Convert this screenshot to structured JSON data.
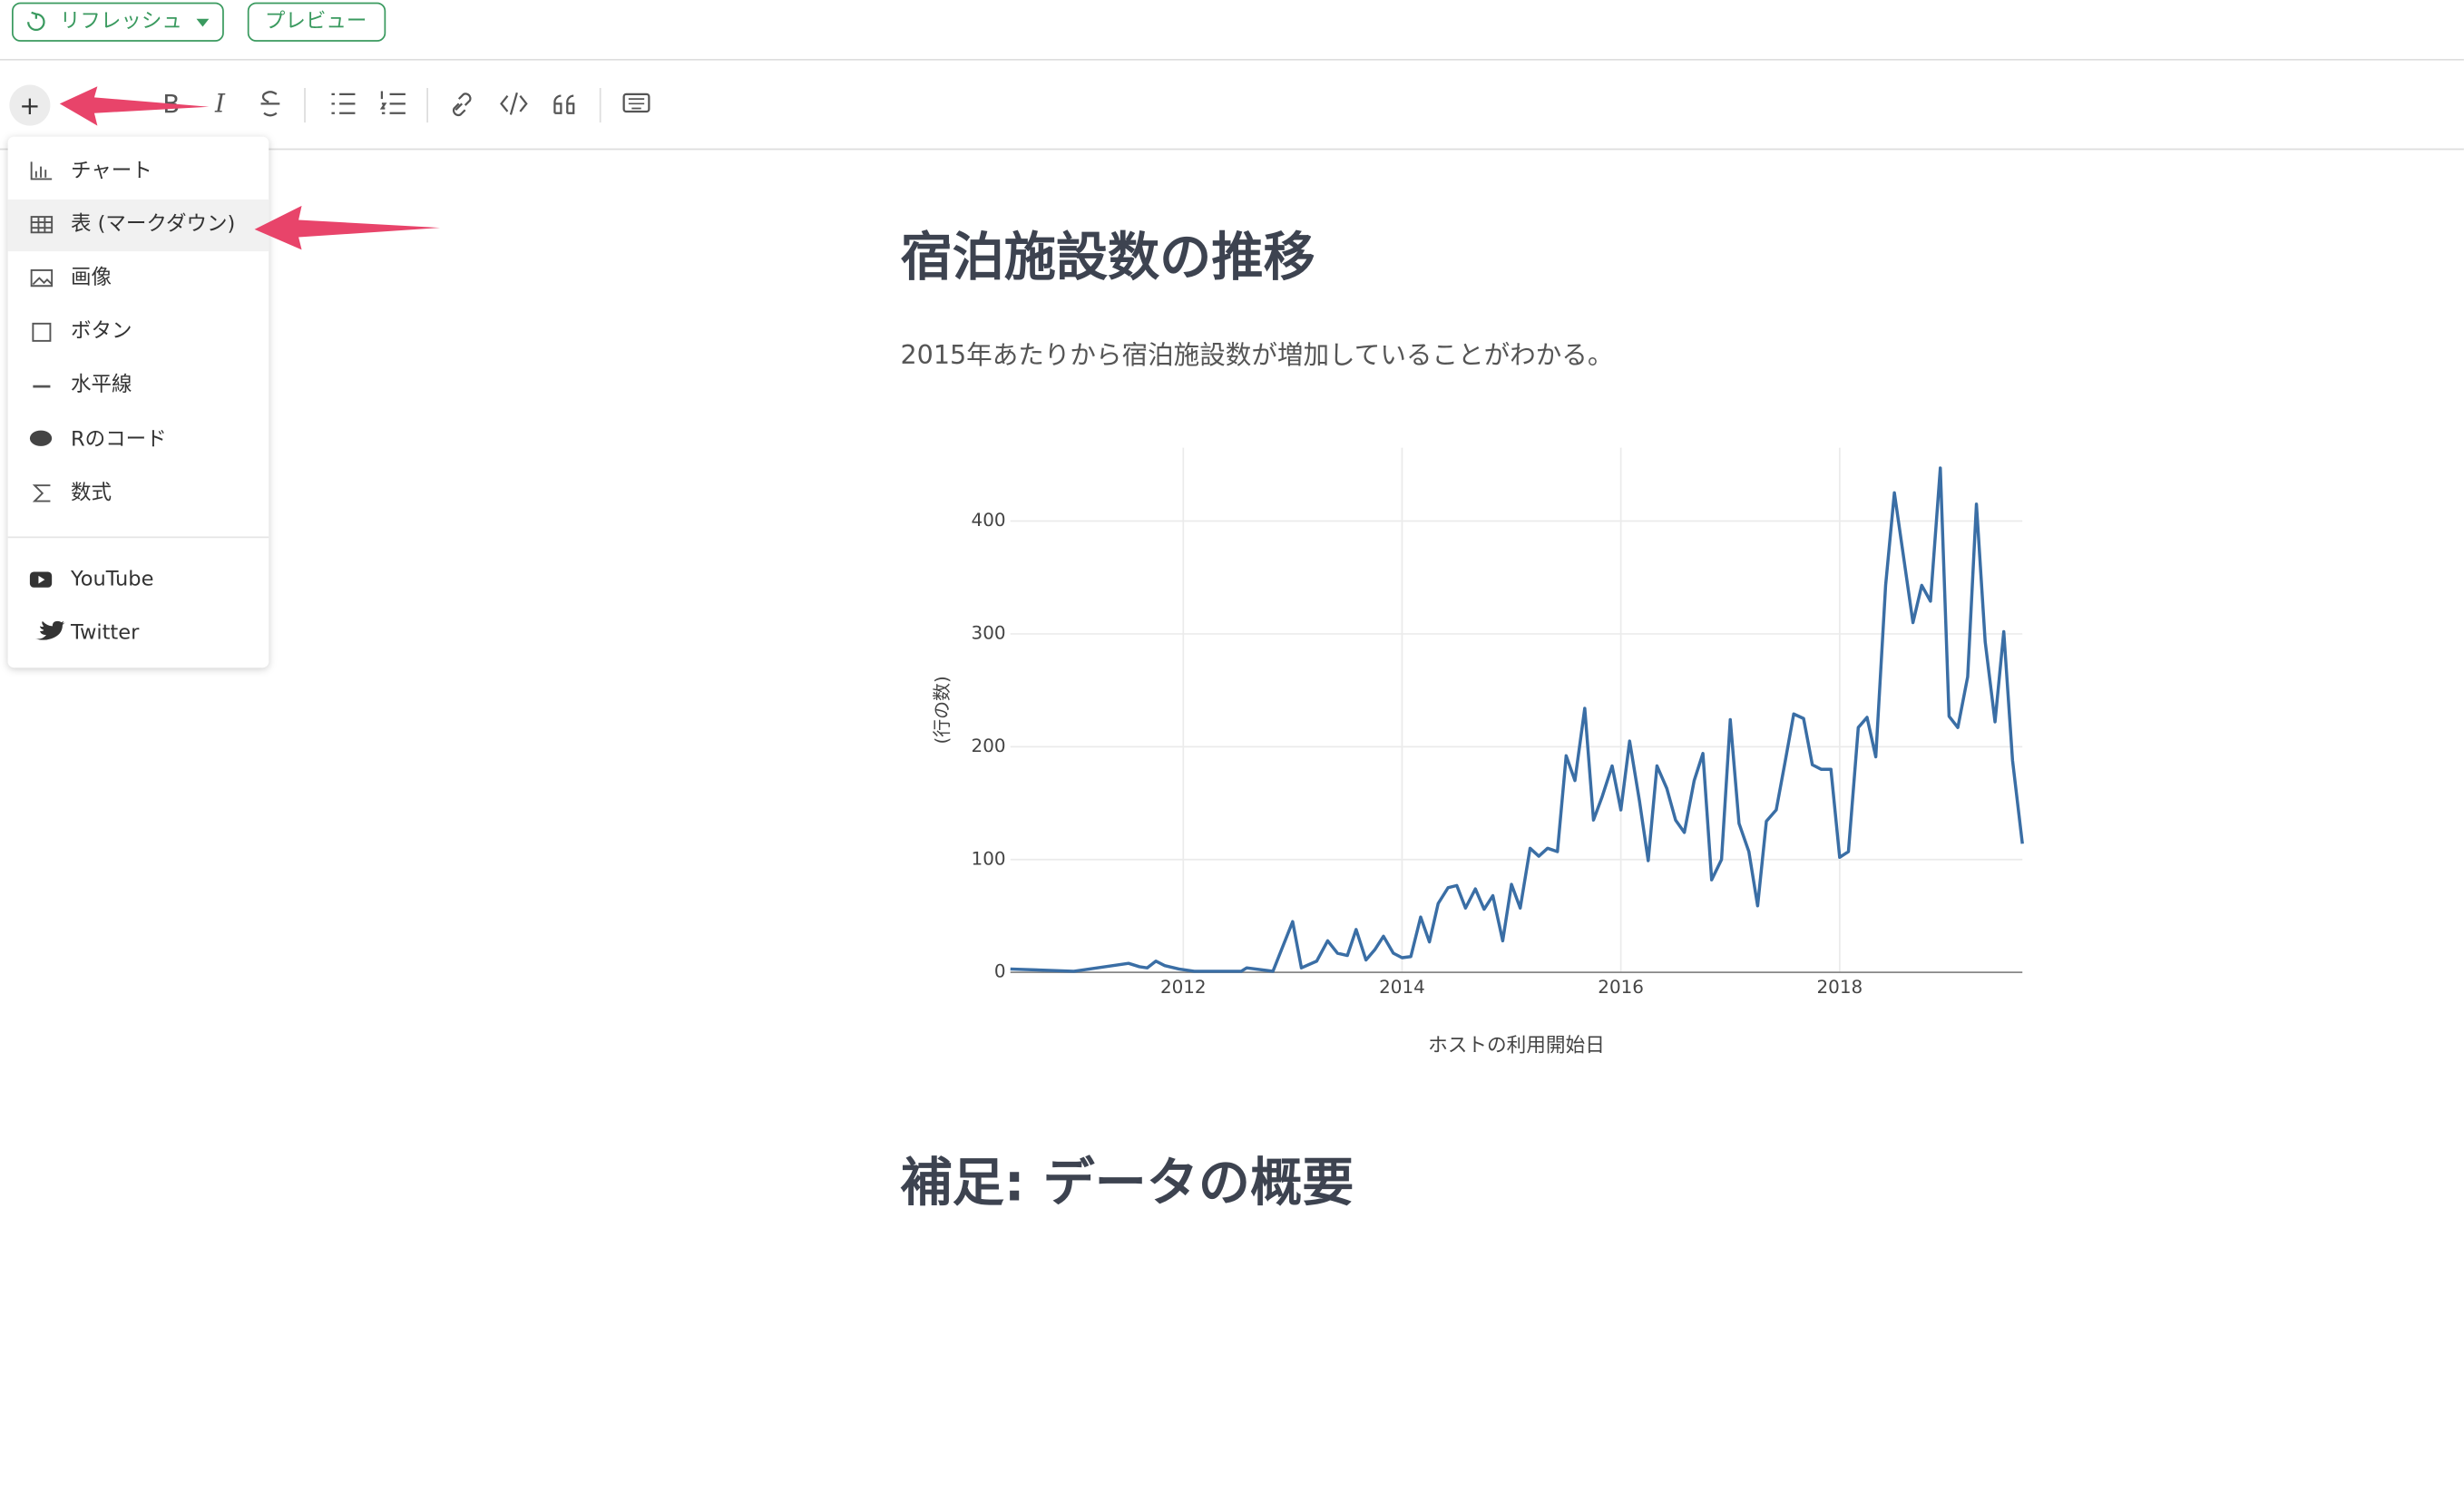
{
  "topbar": {
    "refresh": "リフレッシュ",
    "preview": "プレビュー"
  },
  "toolbar": {
    "glyphs": [
      "+",
      "B",
      "I"
    ]
  },
  "menu": {
    "items": [
      "チャート",
      "表 (マークダウン)",
      "画像",
      "ボタン",
      "水平線",
      "Rのコード",
      "数式"
    ],
    "embeds": [
      "YouTube",
      "Twitter"
    ]
  },
  "document": {
    "heading": "宿泊施設数の推移",
    "paragraph": "2015年あたりから宿泊施設数が増加していることがわかる。",
    "heading2": "補足: データの概要"
  },
  "chart_data": {
    "type": "line",
    "xlabel": "ホストの利用開始日",
    "ylabel": "(行の数)",
    "color": "#3a6ea5",
    "grid": true,
    "x": [
      2010.42,
      2011.0,
      2011.5,
      2011.6,
      2011.67,
      2011.75,
      2011.83,
      2011.96,
      2012.1,
      2012.53,
      2012.58,
      2012.82,
      2013.0,
      2013.08,
      2013.22,
      2013.32,
      2013.41,
      2013.5,
      2013.58,
      2013.67,
      2013.75,
      2013.83,
      2013.92,
      2014.0,
      2014.08,
      2014.17,
      2014.25,
      2014.33,
      2014.42,
      2014.5,
      2014.58,
      2014.67,
      2014.75,
      2014.83,
      2014.92,
      2015.0,
      2015.08,
      2015.17,
      2015.25,
      2015.33,
      2015.42,
      2015.5,
      2015.58,
      2015.67,
      2015.75,
      2015.83,
      2015.92,
      2016.0,
      2016.08,
      2016.17,
      2016.25,
      2016.33,
      2016.42,
      2016.5,
      2016.58,
      2016.67,
      2016.75,
      2016.83,
      2016.92,
      2017.0,
      2017.08,
      2017.17,
      2017.25,
      2017.33,
      2017.42,
      2017.5,
      2017.58,
      2017.67,
      2017.75,
      2017.83,
      2017.92,
      2018.0,
      2018.08,
      2018.17,
      2018.25,
      2018.33,
      2018.42,
      2018.5,
      2018.58,
      2018.67,
      2018.75,
      2018.83,
      2018.92,
      2019.0,
      2019.08,
      2019.17,
      2019.25,
      2019.33,
      2019.42,
      2019.5,
      2019.58,
      2019.67
    ],
    "values": [
      3,
      1,
      8,
      5,
      4,
      10,
      6,
      3,
      1,
      1,
      4,
      1,
      45,
      4,
      10,
      28,
      17,
      15,
      38,
      11,
      20,
      32,
      17,
      13,
      14,
      49,
      27,
      61,
      75,
      77,
      57,
      74,
      56,
      68,
      28,
      78,
      57,
      110,
      103,
      110,
      107,
      192,
      170,
      234,
      135,
      156,
      183,
      144,
      205,
      152,
      99,
      183,
      163,
      135,
      124,
      170,
      194,
      82,
      100,
      224,
      132,
      107,
      59,
      134,
      144,
      186,
      229,
      225,
      184,
      180,
      180,
      102,
      107,
      217,
      226,
      191,
      343,
      425,
      371,
      310,
      343,
      329,
      447,
      227,
      217,
      262,
      415,
      293,
      222,
      302,
      188,
      114
    ],
    "xlim": [
      2010.42,
      2019.67
    ],
    "xticks": [
      2012,
      2014,
      2016,
      2018
    ],
    "ylim": [
      0,
      465
    ],
    "yticks": [
      0,
      100,
      200,
      300,
      400
    ]
  }
}
